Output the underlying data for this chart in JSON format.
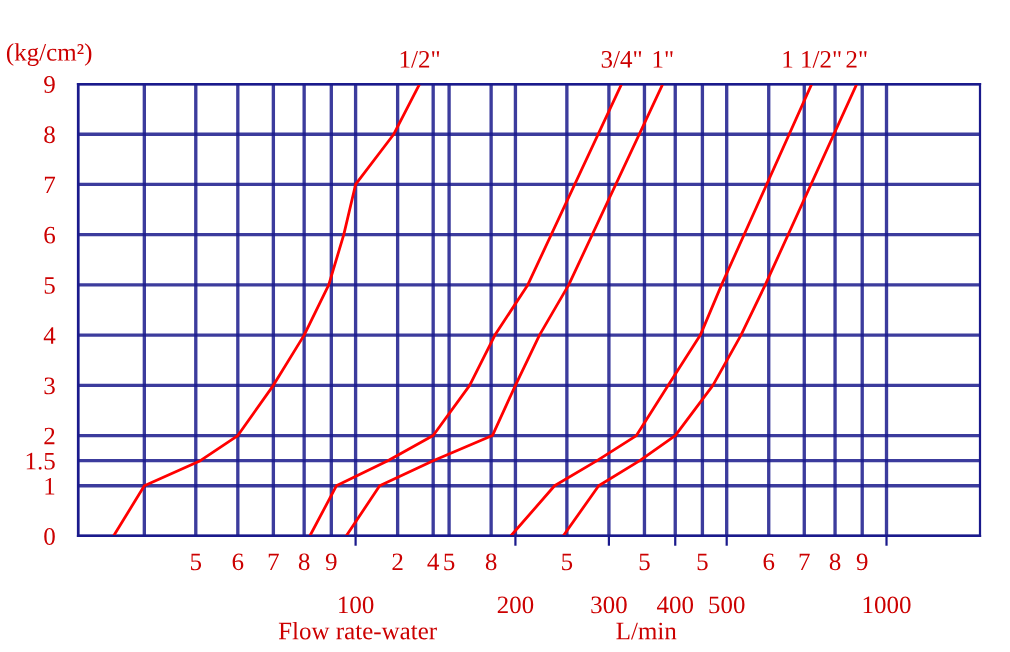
{
  "chart_data": {
    "type": "line",
    "xlabel": "Flow rate-water",
    "ylabel": "(kg/cm²)",
    "annotations": [
      "L/min",
      "5",
      "6",
      "7",
      "8",
      "9",
      "2",
      "4",
      "5",
      "8",
      "5",
      "5",
      "5",
      "6",
      "7",
      "8",
      "9"
    ],
    "log": "x",
    "grid": true,
    "legend": false,
    "marker": "none",
    "line_style": "solid",
    "xlim": [
      30,
      1500
    ],
    "ylim": [
      0,
      9
    ],
    "xticks": [
      {
        "value": 30,
        "label": null
      },
      {
        "value": 40,
        "label": null
      },
      {
        "value": 50,
        "label": null
      },
      {
        "value": 60,
        "label": null
      },
      {
        "value": 70,
        "label": null
      },
      {
        "value": 80,
        "label": null
      },
      {
        "value": 90,
        "label": null
      },
      100,
      {
        "value": 120,
        "label": null
      },
      {
        "value": 140,
        "label": null
      },
      {
        "value": 150,
        "label": null
      },
      {
        "value": 180,
        "label": null
      },
      200,
      {
        "value": 250,
        "label": null
      },
      300,
      {
        "value": 350,
        "label": null
      },
      400,
      {
        "value": 450,
        "label": null
      },
      500,
      {
        "value": 600,
        "label": null
      },
      {
        "value": 700,
        "label": null
      },
      {
        "value": 800,
        "label": null
      },
      {
        "value": 900,
        "label": null
      },
      1000
    ],
    "yticks": [
      0,
      1,
      1.5,
      2,
      3,
      4,
      5,
      6,
      7,
      8,
      9
    ],
    "series": [
      {
        "name": "1/2\"",
        "color": "#ff0000",
        "x": [
          35,
          40,
          51,
          60,
          70,
          80,
          89,
          95,
          100,
          118,
          132
        ],
        "values": [
          0,
          1,
          1.5,
          2,
          3,
          4,
          5,
          6,
          7,
          8,
          9
        ]
      },
      {
        "name": "3/4\"",
        "color": "#ff0000",
        "x": [
          82,
          92,
          115,
          140,
          164,
          183,
          211,
          317
        ],
        "values": [
          0,
          1,
          1.5,
          2,
          3,
          4,
          5,
          9
        ]
      },
      {
        "name": "1\"",
        "color": "#ff0000",
        "x": [
          96,
          111,
          140,
          181,
          200,
          222,
          252,
          379
        ],
        "values": [
          0,
          1,
          1.5,
          2,
          3,
          4,
          5,
          9
        ]
      },
      {
        "name": "1 1/2\"",
        "color": "#ff0000",
        "x": [
          196,
          237,
          285,
          338,
          388,
          446,
          489,
          723
        ],
        "values": [
          0,
          1,
          1.5,
          2,
          3,
          4,
          5,
          9
        ]
      },
      {
        "name": "2\"",
        "color": "#ff0000",
        "x": [
          246,
          287,
          343,
          400,
          471,
          532,
          591,
          879
        ],
        "values": [
          0,
          1,
          1.5,
          2,
          3,
          4,
          5,
          9
        ]
      }
    ]
  }
}
